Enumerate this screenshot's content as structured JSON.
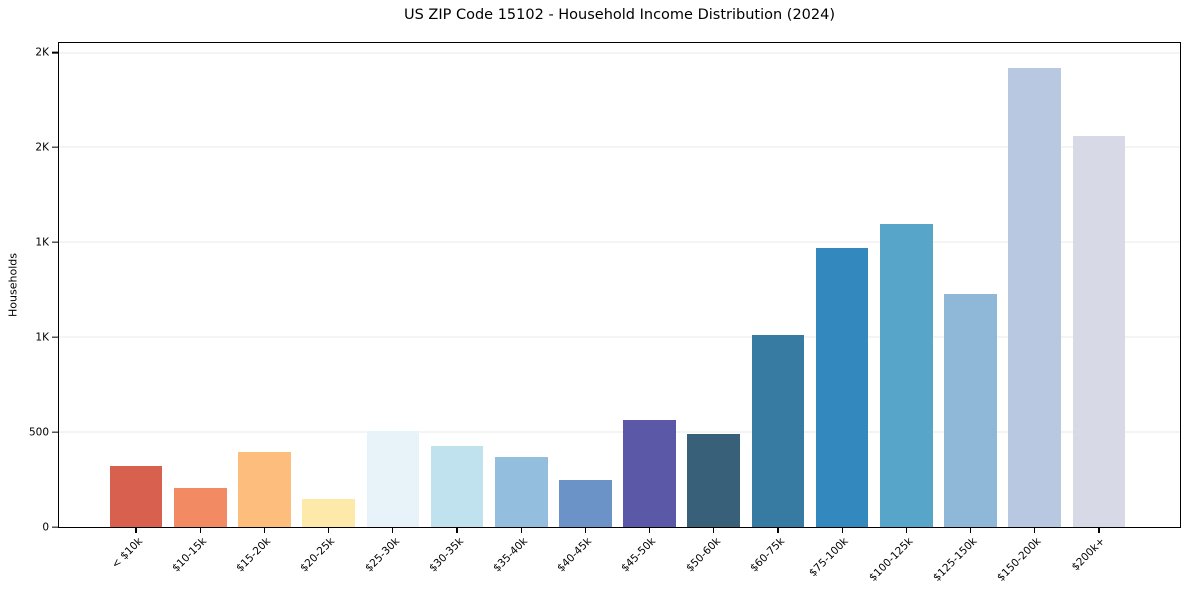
{
  "chart_data": {
    "type": "bar",
    "title": "US ZIP Code 15102 - Household Income Distribution (2024)",
    "xlabel": "",
    "ylabel": "Households",
    "categories": [
      "< $10k",
      "$10-15k",
      "$15-20k",
      "$20-25k",
      "$25-30k",
      "$30-35k",
      "$35-40k",
      "$40-45k",
      "$45-50k",
      "$50-60k",
      "$60-75k",
      "$75-100k",
      "$100-125k",
      "$125-150k",
      "$150-200k",
      "$200k+"
    ],
    "values": [
      320,
      205,
      395,
      150,
      505,
      425,
      370,
      250,
      565,
      490,
      1010,
      1470,
      1595,
      1230,
      2420,
      2060
    ],
    "bar_colors": [
      "#d7604f",
      "#f28a63",
      "#fdbd7d",
      "#fde9a9",
      "#e7f3f8",
      "#c0e1ee",
      "#93bedd",
      "#6b93c7",
      "#5a58a7",
      "#386078",
      "#377ba3",
      "#3389bd",
      "#57a5c8",
      "#8fb7d7",
      "#b7c8e0",
      "#d7d9e6"
    ],
    "ylim": [
      0,
      2550
    ],
    "yticks": [
      {
        "value": 0,
        "label": "0"
      },
      {
        "value": 500,
        "label": "500"
      },
      {
        "value": 1000,
        "label": "1K"
      },
      {
        "value": 1500,
        "label": "1K"
      },
      {
        "value": 2000,
        "label": "2K"
      },
      {
        "value": 2500,
        "label": "2K"
      }
    ],
    "grid": "horizontal",
    "legend": "none",
    "background": "#ffffff",
    "gridline_color": "#e9e9e9"
  }
}
